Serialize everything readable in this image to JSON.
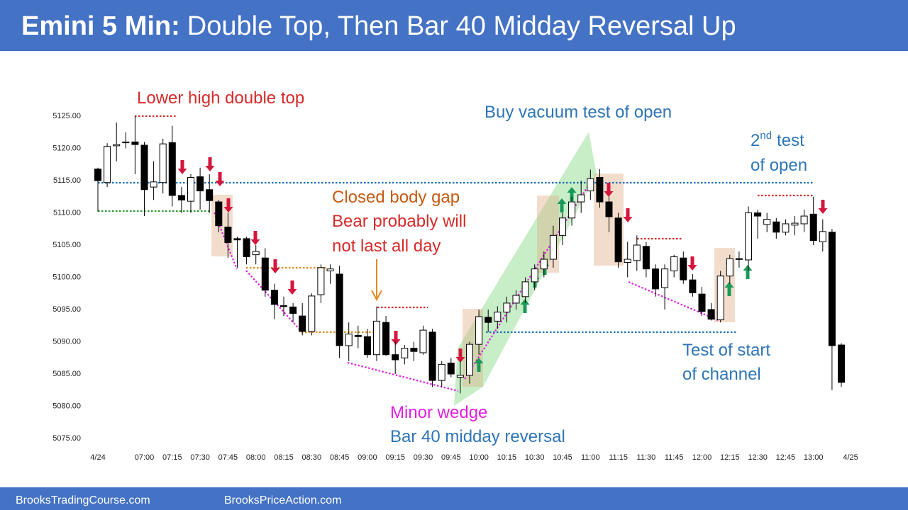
{
  "chart_data": {
    "type": "candlestick",
    "title_prefix": "Emini 5 Min:",
    "title": "Double Top, Then Bar 40 Midday Reversal Up",
    "footer": [
      "BrooksTradingCourse.com",
      "BrooksPriceAction.com"
    ],
    "annotations": [
      "Lower high double top",
      "Buy vacuum test of open",
      "2",
      "nd",
      "test",
      "of open",
      "Closed body gap",
      "Bear probably will",
      "not last all day",
      "Minor wedge",
      "Bar 40 midday reversal",
      "Test of start",
      "of channel"
    ],
    "categories": [
      "4/24",
      null,
      null,
      null,
      null,
      "07:00",
      null,
      null,
      "07:15",
      null,
      null,
      "07:30",
      null,
      null,
      "07:45",
      null,
      null,
      "08:00",
      null,
      null,
      "08:15",
      null,
      null,
      "08:30",
      null,
      null,
      "08:45",
      null,
      null,
      "09:00",
      null,
      null,
      "09:15",
      null,
      null,
      "09:30",
      null,
      null,
      "09:45",
      null,
      null,
      "10:00",
      null,
      null,
      "10:15",
      null,
      null,
      "10:30",
      null,
      null,
      "10:45",
      null,
      null,
      "11:00",
      null,
      null,
      "11:15",
      null,
      null,
      "11:30",
      null,
      null,
      "11:45",
      null,
      null,
      "12:00",
      null,
      null,
      "12:15",
      null,
      null,
      "12:30",
      null,
      null,
      "12:45",
      null,
      null,
      "13:00",
      null,
      null,
      null,
      "4/25"
    ],
    "open": [
      5116.8,
      5114.7,
      5120.4,
      5121,
      5121,
      5120.5,
      5114,
      5114.7,
      5120.9,
      5112.7,
      5111.8,
      5115.6,
      5113.6,
      5111.7,
      5107.8,
      5106,
      5106,
      5103.5,
      5103,
      5098,
      5095.6,
      5095.4,
      5094,
      5091.6,
      5097.3,
      5101,
      5100.5,
      5089.4,
      5091,
      5090.8,
      5088,
      5093,
      5088,
      5087.5,
      5089,
      5088.3,
      5091.5,
      5084,
      5086.7,
      5084.5,
      5084.8,
      5089.6,
      5093.8,
      5093.2,
      5094.6,
      5096,
      5097,
      5099.3,
      5101.3,
      5102.8,
      5106.5,
      5109.2,
      5111.7,
      5113.4,
      5115.5,
      5111.7,
      5109.2,
      5102.3,
      5102.6,
      5104.8,
      5101.3,
      5098.4,
      5101,
      5103,
      5099.6,
      5097.4,
      5095,
      5093.4,
      5100.2,
      5102.9,
      5102.7,
      5110,
      5108.2,
      5108.6,
      5107,
      5108.1,
      5108.3,
      5109.8,
      5105.5,
      5107,
      5089.5,
      null
    ],
    "high": [
      5117,
      5120.8,
      5124,
      5122.5,
      5125,
      5121,
      5118,
      5121.5,
      5123.5,
      5114,
      5116,
      5117,
      5116,
      5112,
      5110,
      5106.3,
      5106.3,
      5105,
      5104.5,
      5099,
      5097,
      5096,
      5096,
      5097.5,
      5102,
      5102,
      5101.8,
      5093,
      5092.5,
      5092,
      5095.5,
      5094,
      5090,
      5089.5,
      5090,
      5092.5,
      5092,
      5087,
      5087.5,
      5087,
      5090,
      5095,
      5095,
      5095.5,
      5097,
      5098,
      5100,
      5102,
      5104,
      5108,
      5110,
      5112.5,
      5115,
      5116.7,
      5116.8,
      5112.5,
      5110,
      5105.5,
      5106.5,
      5105.5,
      5102,
      5102,
      5103.5,
      5104,
      5100.5,
      5098.5,
      5096,
      5101,
      5103.5,
      5104,
      5111,
      5110.5,
      5110,
      5109.2,
      5109,
      5109.5,
      5110.5,
      5112.5,
      5109,
      5107.5,
      5089.8,
      null
    ],
    "low": [
      5110.2,
      5114,
      5118,
      5120,
      5116,
      5109.5,
      5112,
      5113,
      5111,
      5110,
      5110,
      5110.5,
      5110,
      5107,
      5103,
      5101.5,
      5102,
      5102,
      5097,
      5093.5,
      5094,
      5093,
      5091,
      5091,
      5096,
      5099,
      5087.5,
      5087,
      5089,
      5087.5,
      5087,
      5087.8,
      5085,
      5086.5,
      5087,
      5088,
      5083,
      5083,
      5084.5,
      5082,
      5083.5,
      5088,
      5091.5,
      5092,
      5093,
      5095,
      5096,
      5098,
      5100,
      5101.5,
      5105,
      5108,
      5110,
      5112,
      5110.8,
      5107,
      5101.5,
      5100,
      5101,
      5100,
      5097,
      5095,
      5100,
      5099,
      5097,
      5094,
      5093.3,
      5093,
      5099,
      5101.5,
      5101,
      5106,
      5107,
      5106,
      5106.5,
      5106.5,
      5107,
      5105,
      5104,
      5082.5,
      5083,
      null
    ],
    "close": [
      5115,
      5120.3,
      5120.6,
      5121,
      5120.6,
      5113.6,
      5114.8,
      5120.7,
      5112.7,
      5112,
      5115.5,
      5113.4,
      5111.9,
      5108,
      5105.4,
      5105.8,
      5103.2,
      5104,
      5098,
      5095.8,
      5095.5,
      5094.4,
      5091.6,
      5097.1,
      5101.5,
      5101.3,
      5089.4,
      5091.2,
      5090.8,
      5088,
      5093.2,
      5088,
      5087.2,
      5089,
      5088.5,
      5091.8,
      5084,
      5086.5,
      5085,
      5084.8,
      5089.6,
      5093.9,
      5093,
      5094.6,
      5096,
      5097.2,
      5099.3,
      5101.3,
      5102.8,
      5106.5,
      5109.2,
      5111.7,
      5112.8,
      5115.3,
      5111.7,
      5109.4,
      5102.4,
      5102.8,
      5105,
      5101.3,
      5098.2,
      5101.3,
      5103.2,
      5099.6,
      5097.6,
      5094.7,
      5093.5,
      5100.2,
      5102.9,
      5102.8,
      5110,
      5109.5,
      5109,
      5107,
      5108.3,
      5108.4,
      5109.5,
      5105.7,
      5107.1,
      5089.4,
      5083.7,
      null
    ],
    "up_color": "#ffffff",
    "down_color": "#000000",
    "ylim": [
      5075,
      5125
    ],
    "yticks": [
      {
        "value": 5075,
        "label": "5075.00"
      },
      {
        "value": 5080,
        "label": "5080.00"
      },
      {
        "value": 5085,
        "label": "5085.00"
      },
      {
        "value": 5090,
        "label": "5090.00"
      },
      {
        "value": 5095,
        "label": "5095.00"
      },
      {
        "value": 5100,
        "label": "5100.00"
      },
      {
        "value": 5105,
        "label": "5105.00"
      },
      {
        "value": 5110,
        "label": "5110.00"
      },
      {
        "value": 5115,
        "label": "5115.00"
      },
      {
        "value": 5120,
        "label": "5120.00"
      },
      {
        "value": 5125,
        "label": "5125.00"
      }
    ]
  }
}
